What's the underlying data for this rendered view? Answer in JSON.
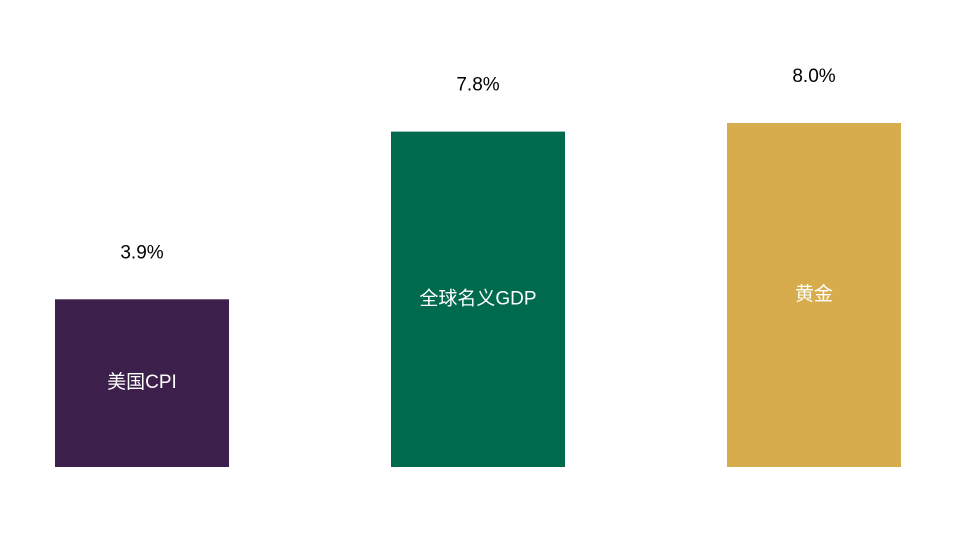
{
  "chart_data": {
    "type": "bar",
    "categories": [
      "美国CPI",
      "全球名义GDP",
      "黄金"
    ],
    "values": [
      3.9,
      7.8,
      8.0
    ],
    "value_labels": [
      "3.9%",
      "7.8%",
      "8.0%"
    ],
    "colors": [
      "#3c1f4a",
      "#006a4e",
      "#d6ac4c"
    ]
  }
}
